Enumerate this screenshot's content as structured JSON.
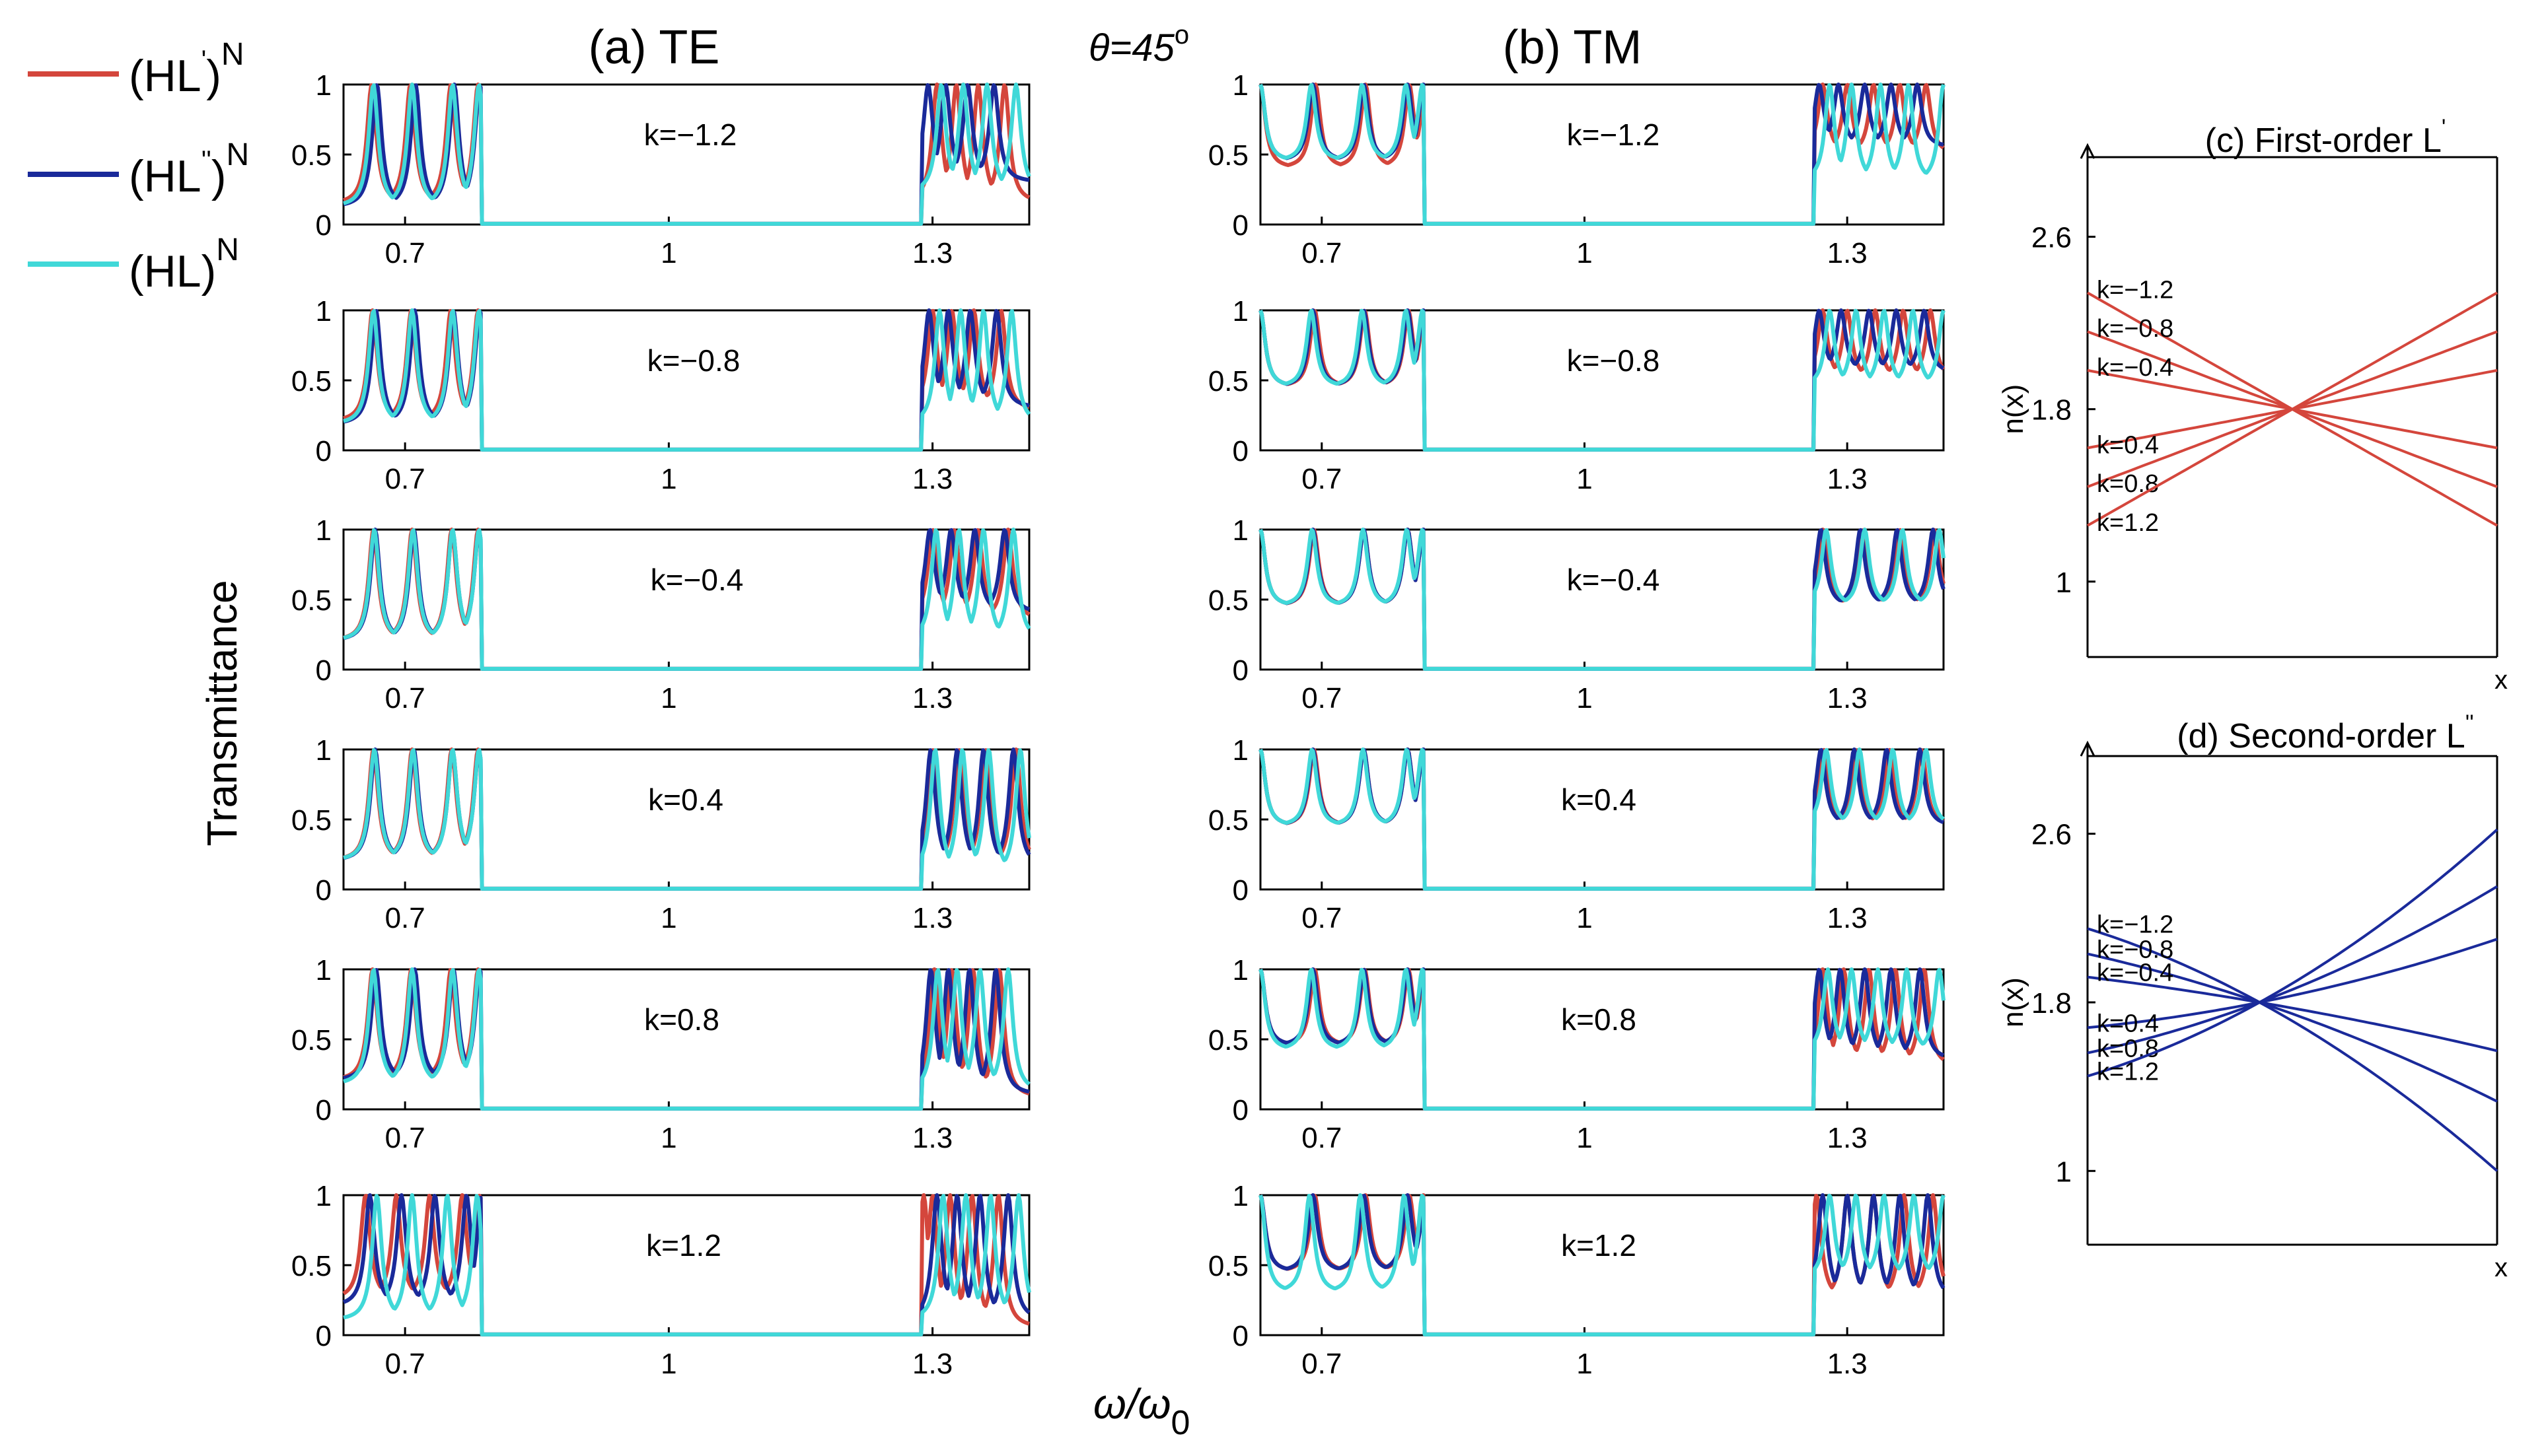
{
  "figure": {
    "angle_label": "θ=45",
    "angle_sup": "o",
    "x_axis_label": "ω/ω",
    "x_axis_sub": "0",
    "y_axis_label": "Transmittance"
  },
  "legend": [
    {
      "base": "(HL",
      "prime": "'",
      "close": ")",
      "sup": "N",
      "color": "#d4463c"
    },
    {
      "base": "(HL",
      "prime": "''",
      "close": ")",
      "sup": "N",
      "color": "#1a2a9a"
    },
    {
      "base": "(HL",
      "prime": "",
      "close": ")",
      "sup": "N",
      "color": "#40d8d8"
    }
  ],
  "colors": {
    "first_order": "#d4463c",
    "second_order": "#1a2a9a",
    "plain": "#40d8d8"
  },
  "chart_data": [
    {
      "id": "te",
      "type": "line",
      "title": "(a)  TE",
      "xlabel": "ω/ω0",
      "ylabel": "Transmittance",
      "xlim": [
        0.63,
        1.41
      ],
      "ylim": [
        0,
        1
      ],
      "xticks": [
        0.7,
        1,
        1.3
      ],
      "xtick_labels": [
        "0.7",
        "1",
        "1.3"
      ],
      "yticks": [
        0,
        0.5,
        1
      ],
      "ytick_labels": [
        "0",
        "0.5",
        "1"
      ],
      "band_edges": [
        0.785,
        1.29
      ],
      "series_names": [
        "(HL')^N",
        "(HL'')^N",
        "(HL)^N"
      ],
      "rows": [
        {
          "k_label": "k=−1.2",
          "k": -1.2,
          "resonances": [
            [
              0.662,
              0.706,
              0.752,
              0.783
            ],
            [
              0.668,
              0.712,
              0.756,
              0.785
            ],
            [
              0.664,
              0.708,
              0.754,
              0.784
            ]
          ],
          "min_left": [
            0.14,
            0.12,
            0.12
          ],
          "upper": [
            [
              1.305,
              1.327,
              1.352,
              1.382
            ],
            [
              1.295,
              1.315,
              1.34,
              1.37
            ],
            [
              1.31,
              1.335,
              1.362,
              1.395
            ]
          ],
          "min_right": [
            0.15,
            0.3,
            0.22
          ]
        },
        {
          "k_label": "k=−0.8",
          "k": -0.8,
          "resonances": [
            [
              0.663,
              0.707,
              0.752,
              0.783
            ],
            [
              0.667,
              0.711,
              0.755,
              0.785
            ],
            [
              0.664,
              0.708,
              0.754,
              0.784
            ]
          ],
          "min_left": [
            0.2,
            0.18,
            0.18
          ],
          "upper": [
            [
              1.3,
              1.322,
              1.347,
              1.378
            ],
            [
              1.296,
              1.318,
              1.343,
              1.373
            ],
            [
              1.308,
              1.332,
              1.358,
              1.39
            ]
          ],
          "min_right": [
            0.28,
            0.3,
            0.18
          ]
        },
        {
          "k_label": "k=−0.4",
          "k": -0.4,
          "resonances": [
            [
              0.664,
              0.708,
              0.753,
              0.783
            ],
            [
              0.666,
              0.71,
              0.754,
              0.784
            ],
            [
              0.665,
              0.709,
              0.754,
              0.784
            ]
          ],
          "min_left": [
            0.2,
            0.2,
            0.2
          ],
          "upper": [
            [
              1.3,
              1.325,
              1.352,
              1.386
            ],
            [
              1.297,
              1.321,
              1.348,
              1.382
            ],
            [
              1.304,
              1.33,
              1.358,
              1.392
            ]
          ],
          "min_right": [
            0.35,
            0.4,
            0.2
          ]
        },
        {
          "k_label": "k=0.4",
          "k": 0.4,
          "resonances": [
            [
              0.664,
              0.708,
              0.753,
              0.783
            ],
            [
              0.666,
              0.71,
              0.754,
              0.784
            ],
            [
              0.665,
              0.709,
              0.754,
              0.784
            ]
          ],
          "min_left": [
            0.2,
            0.2,
            0.2
          ],
          "upper": [
            [
              1.3,
              1.33,
              1.36,
              1.395
            ],
            [
              1.298,
              1.328,
              1.358,
              1.392
            ],
            [
              1.303,
              1.334,
              1.364,
              1.4
            ]
          ],
          "min_right": [
            0.15,
            0.15,
            0.1
          ]
        },
        {
          "k_label": "k=0.8",
          "k": 0.8,
          "resonances": [
            [
              0.663,
              0.707,
              0.752,
              0.783
            ],
            [
              0.667,
              0.711,
              0.755,
              0.785
            ],
            [
              0.664,
              0.708,
              0.754,
              0.784
            ]
          ],
          "min_left": [
            0.2,
            0.2,
            0.17
          ],
          "upper": [
            [
              1.302,
              1.322,
              1.346,
              1.376
            ],
            [
              1.298,
              1.318,
              1.342,
              1.372
            ],
            [
              1.306,
              1.328,
              1.354,
              1.386
            ]
          ],
          "min_right": [
            0.08,
            0.1,
            0.12
          ]
        },
        {
          "k_label": "k=1.2",
          "k": 1.2,
          "resonances": [
            [
              0.655,
              0.69,
              0.728,
              0.765,
              0.785
            ],
            [
              0.66,
              0.696,
              0.734,
              0.77,
              0.787
            ],
            [
              0.668,
              0.708,
              0.748,
              0.782
            ]
          ],
          "min_left": [
            0.25,
            0.2,
            0.1
          ],
          "upper": [
            [
              1.29,
              1.3,
              1.32,
              1.345,
              1.375
            ],
            [
              1.305,
              1.328,
              1.354,
              1.386
            ],
            [
              1.312,
              1.338,
              1.366,
              1.398
            ]
          ],
          "min_right": [
            0.05,
            0.1,
            0.1
          ]
        }
      ]
    },
    {
      "id": "tm",
      "type": "line",
      "title": "(b)  TM",
      "xlabel": "ω/ω0",
      "ylabel": "Transmittance",
      "xlim": [
        0.63,
        1.41
      ],
      "ylim": [
        0,
        1
      ],
      "xticks": [
        0.7,
        1,
        1.3
      ],
      "xtick_labels": [
        "0.7",
        "1",
        "1.3"
      ],
      "yticks": [
        0,
        0.5,
        1
      ],
      "ytick_labels": [
        "0",
        "0.5",
        "1"
      ],
      "band_edges": [
        0.815,
        1.265
      ],
      "series_names": [
        "(HL')^N",
        "(HL'')^N",
        "(HL)^N"
      ],
      "rows": [
        {
          "k_label": "k=−1.2",
          "k": -1.2,
          "resonances": [
            [
              0.63,
              0.693,
              0.75,
              0.8,
              0.818
            ],
            [
              0.63,
              0.69,
              0.748,
              0.798,
              0.816
            ],
            [
              0.63,
              0.688,
              0.746,
              0.796,
              0.815
            ]
          ],
          "min_left": [
            0.4,
            0.45,
            0.45
          ],
          "upper": [
            [
              1.272,
              1.3,
              1.33,
              1.36,
              1.39
            ],
            [
              1.268,
              1.29,
              1.32,
              1.35,
              1.38
            ],
            [
              1.28,
              1.305,
              1.338,
              1.37,
              1.41
            ]
          ],
          "min_right": [
            0.5,
            0.55,
            0.3
          ]
        },
        {
          "k_label": "k=−0.8",
          "k": -0.8,
          "resonances": [
            [
              0.63,
              0.692,
              0.749,
              0.799,
              0.817
            ],
            [
              0.63,
              0.69,
              0.748,
              0.798,
              0.816
            ],
            [
              0.63,
              0.688,
              0.746,
              0.796,
              0.815
            ]
          ],
          "min_left": [
            0.45,
            0.45,
            0.45
          ],
          "upper": [
            [
              1.272,
              1.3,
              1.332,
              1.364,
              1.395
            ],
            [
              1.268,
              1.293,
              1.325,
              1.356,
              1.388
            ],
            [
              1.28,
              1.31,
              1.342,
              1.375,
              1.41
            ]
          ],
          "min_right": [
            0.5,
            0.55,
            0.45
          ]
        },
        {
          "k_label": "k=−0.4",
          "k": -0.4,
          "resonances": [
            [
              0.63,
              0.691,
              0.748,
              0.798,
              0.816
            ],
            [
              0.63,
              0.69,
              0.748,
              0.798,
              0.816
            ],
            [
              0.63,
              0.689,
              0.747,
              0.797,
              0.815
            ]
          ],
          "min_left": [
            0.45,
            0.45,
            0.45
          ],
          "upper": [
            [
              1.272,
              1.318,
              1.36,
              1.4
            ],
            [
              1.27,
              1.315,
              1.357,
              1.398
            ],
            [
              1.276,
              1.32,
              1.363,
              1.405
            ]
          ],
          "min_right": [
            0.45,
            0.45,
            0.45
          ]
        },
        {
          "k_label": "k=0.4",
          "k": 0.4,
          "resonances": [
            [
              0.63,
              0.691,
              0.748,
              0.798,
              0.816
            ],
            [
              0.63,
              0.69,
              0.748,
              0.798,
              0.816
            ],
            [
              0.63,
              0.689,
              0.747,
              0.797,
              0.815
            ]
          ],
          "min_left": [
            0.45,
            0.45,
            0.45
          ],
          "upper": [
            [
              1.273,
              1.31,
              1.348,
              1.385
            ],
            [
              1.27,
              1.308,
              1.345,
              1.383
            ],
            [
              1.276,
              1.314,
              1.352,
              1.39
            ]
          ],
          "min_right": [
            0.45,
            0.45,
            0.45
          ]
        },
        {
          "k_label": "k=0.8",
          "k": 0.8,
          "resonances": [
            [
              0.63,
              0.692,
              0.749,
              0.799,
              0.817
            ],
            [
              0.63,
              0.69,
              0.748,
              0.798,
              0.816
            ],
            [
              0.63,
              0.688,
              0.746,
              0.796,
              0.815
            ]
          ],
          "min_left": [
            0.45,
            0.45,
            0.42
          ],
          "upper": [
            [
              1.272,
              1.296,
              1.325,
              1.355,
              1.388
            ],
            [
              1.268,
              1.292,
              1.32,
              1.35,
              1.383
            ],
            [
              1.278,
              1.305,
              1.335,
              1.368,
              1.405
            ]
          ],
          "min_right": [
            0.3,
            0.35,
            0.4
          ]
        },
        {
          "k_label": "k=1.2",
          "k": 1.2,
          "resonances": [
            [
              0.63,
              0.692,
              0.75,
              0.8,
              0.816
            ],
            [
              0.63,
              0.69,
              0.748,
              0.798,
              0.818
            ],
            [
              0.63,
              0.686,
              0.744,
              0.794,
              0.815
            ]
          ],
          "min_left": [
            0.45,
            0.45,
            0.3
          ],
          "upper": [
            [
              1.265,
              1.3,
              1.33,
              1.365,
              1.398
            ],
            [
              1.272,
              1.3,
              1.33,
              1.36,
              1.392
            ],
            [
              1.28,
              1.31,
              1.342,
              1.376,
              1.41
            ]
          ],
          "min_right": [
            0.25,
            0.25,
            0.4
          ]
        }
      ]
    },
    {
      "id": "c",
      "type": "line",
      "title": "(c) First-order L",
      "title_prime": "'",
      "xlabel": "x",
      "ylabel": "n(x)",
      "xlim": [
        0,
        1
      ],
      "ylim": [
        0.65,
        3.0
      ],
      "yticks": [
        1,
        1.8,
        2.6
      ],
      "ytick_labels": [
        "1",
        "1.8",
        "2.6"
      ],
      "center": [
        0.45,
        1.8
      ],
      "series": [
        {
          "name": "k=−1.2",
          "k": -1.2,
          "values_at_x0": 2.34,
          "values_at_x1": 1.26
        },
        {
          "name": "k=−0.8",
          "k": -0.8,
          "values_at_x0": 2.16,
          "values_at_x1": 1.44
        },
        {
          "name": "k=−0.4",
          "k": -0.4,
          "values_at_x0": 1.98,
          "values_at_x1": 1.62
        },
        {
          "name": "k=0.4",
          "k": 0.4,
          "values_at_x0": 1.62,
          "values_at_x1": 1.98
        },
        {
          "name": "k=0.8",
          "k": 0.8,
          "values_at_x0": 1.44,
          "values_at_x1": 2.16
        },
        {
          "name": "k=1.2",
          "k": 1.2,
          "values_at_x0": 1.26,
          "values_at_x1": 2.34
        }
      ]
    },
    {
      "id": "d",
      "type": "line",
      "title": "(d) Second-order L",
      "title_prime": "''",
      "xlabel": "x",
      "ylabel": "n(x)",
      "xlim": [
        0,
        1
      ],
      "ylim": [
        0.65,
        3.0
      ],
      "yticks": [
        1,
        1.8,
        2.6
      ],
      "ytick_labels": [
        "1",
        "1.8",
        "2.6"
      ],
      "center": [
        0.42,
        1.8
      ],
      "series": [
        {
          "name": "k=−1.2",
          "k": -1.2,
          "values_at_x0": 2.15,
          "values_at_x1": 1.0
        },
        {
          "name": "k=−0.8",
          "k": -0.8,
          "values_at_x0": 2.03,
          "values_at_x1": 1.33
        },
        {
          "name": "k=−0.4",
          "k": -0.4,
          "values_at_x0": 1.92,
          "values_at_x1": 1.57
        },
        {
          "name": "k=0.4",
          "k": 0.4,
          "values_at_x0": 1.68,
          "values_at_x1": 2.1
        },
        {
          "name": "k=0.8",
          "k": 0.8,
          "values_at_x0": 1.56,
          "values_at_x1": 2.35
        },
        {
          "name": "k=1.2",
          "k": 1.2,
          "values_at_x0": 1.45,
          "values_at_x1": 2.62
        }
      ]
    }
  ]
}
